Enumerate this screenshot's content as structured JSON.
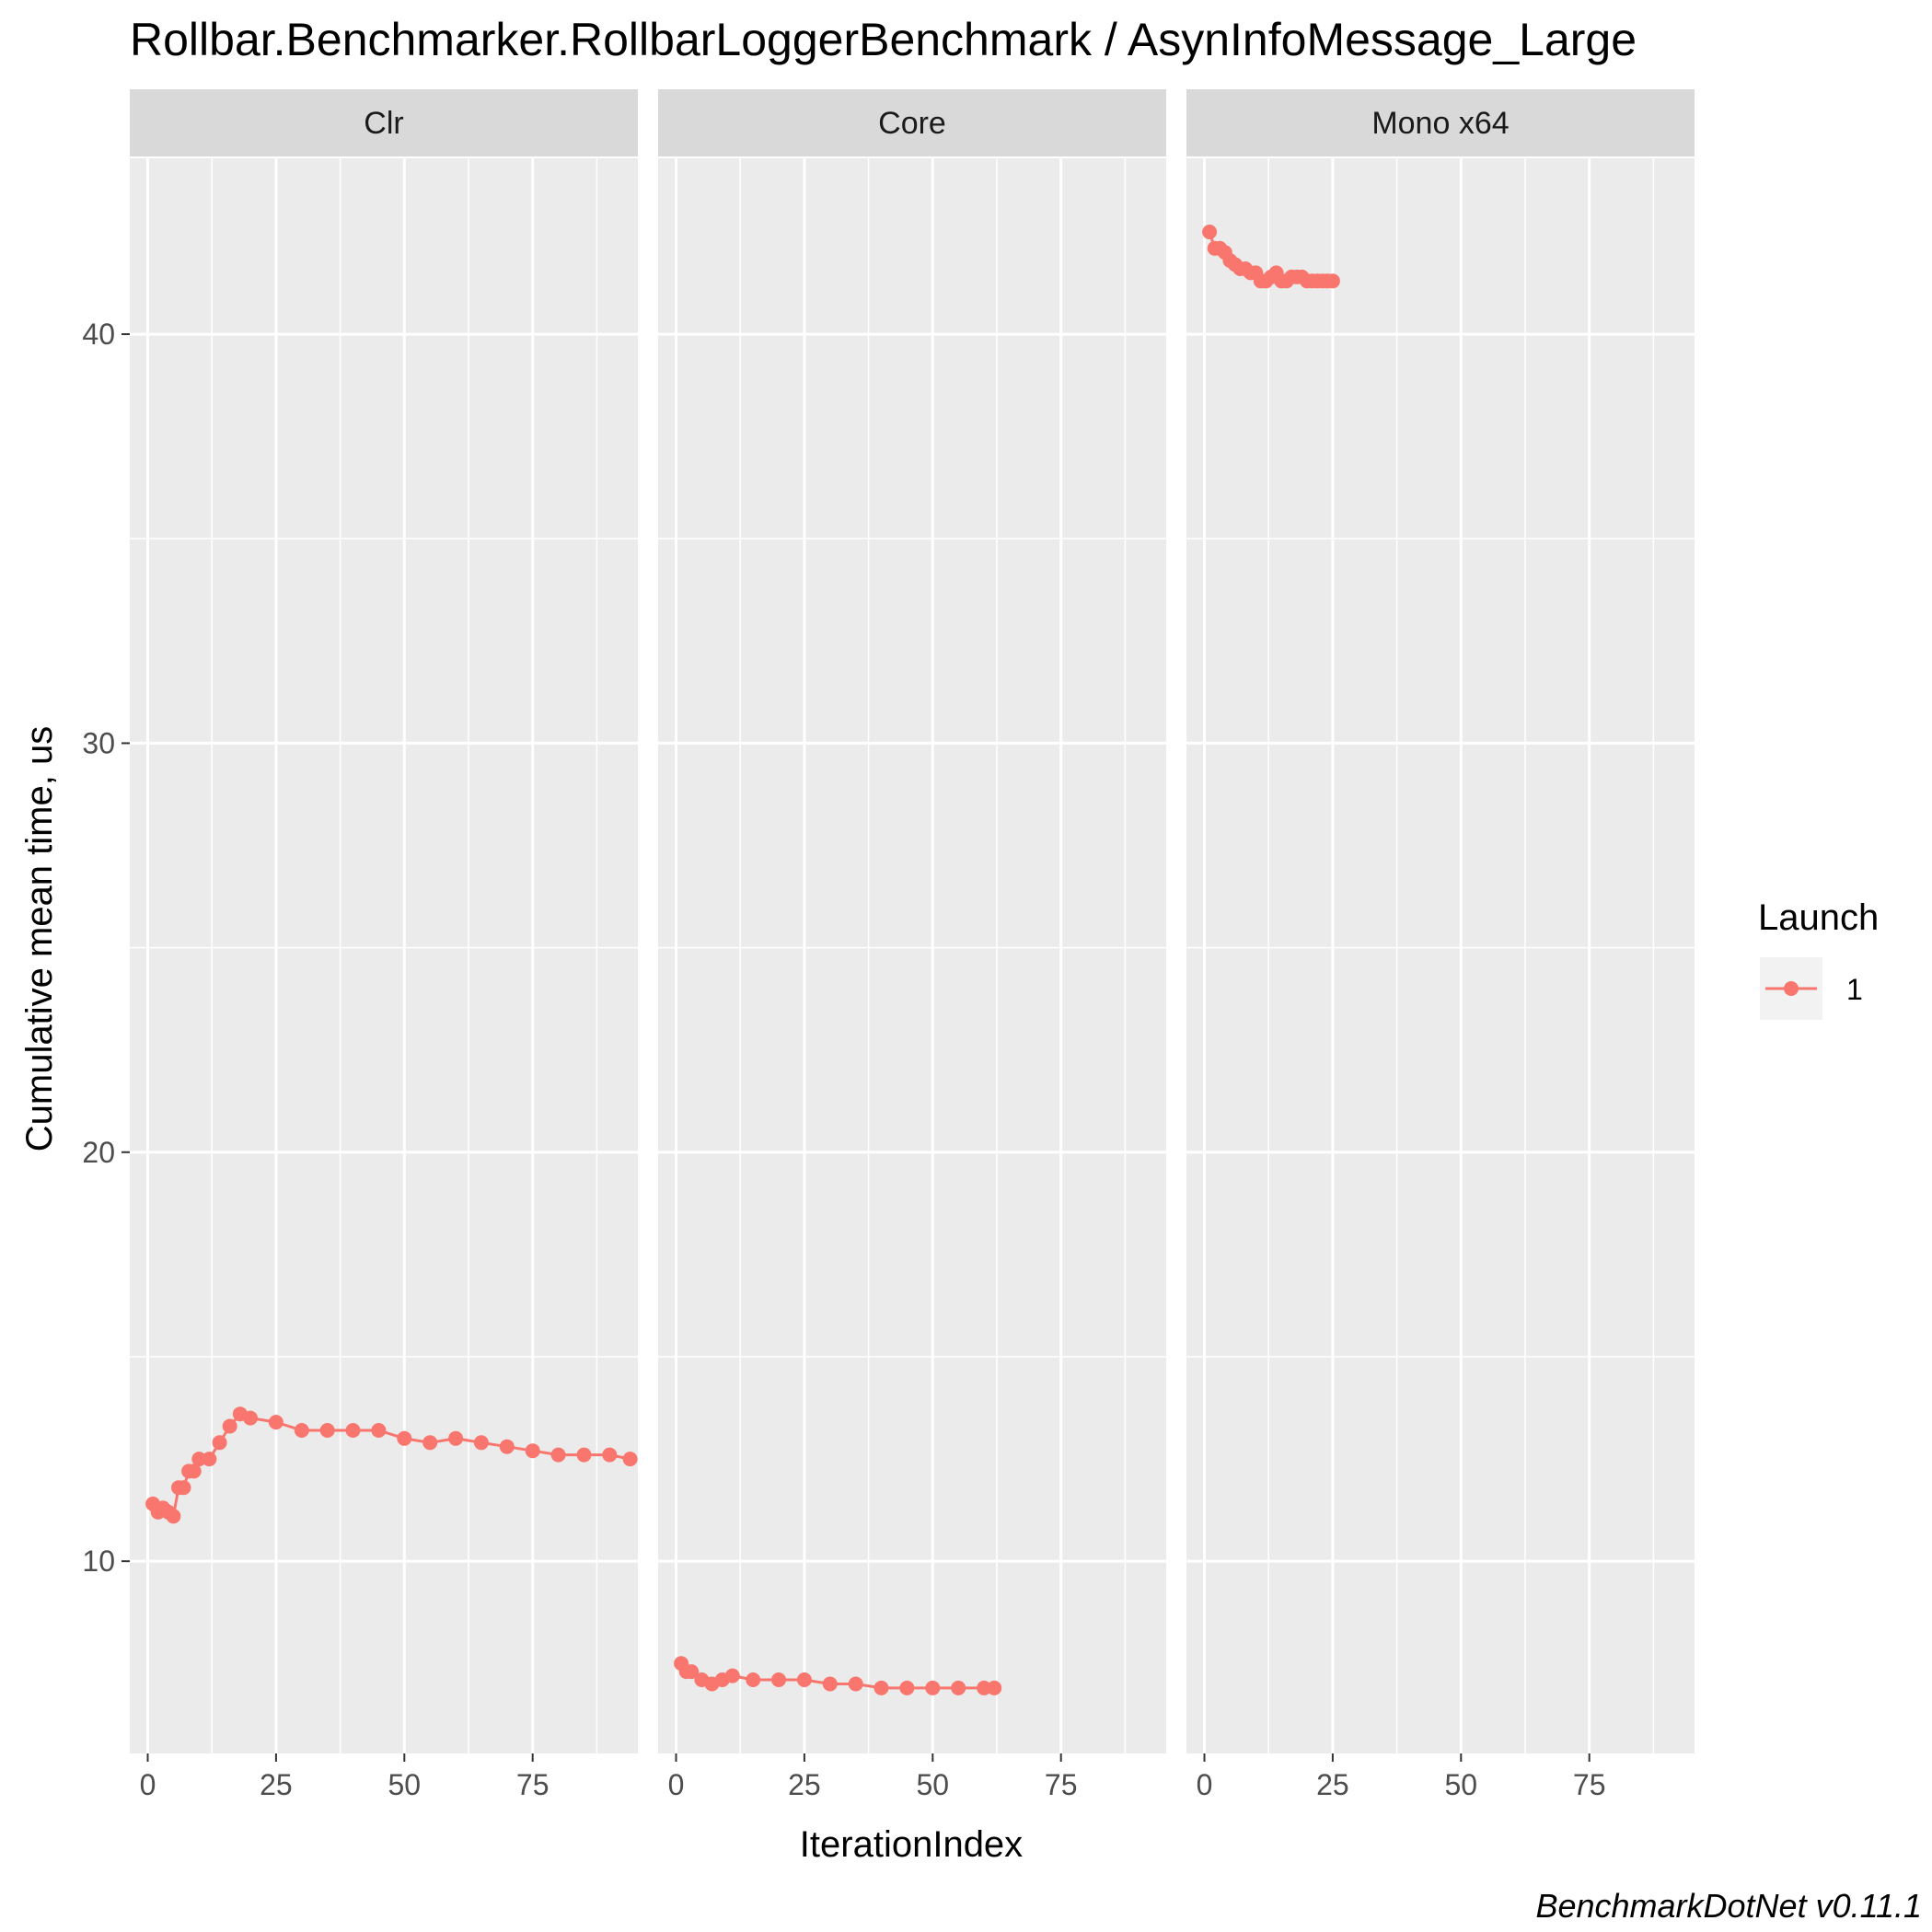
{
  "chart_data": {
    "type": "line",
    "title": "Rollbar.Benchmarker.RollbarLoggerBenchmark / AsynInfoMessage_Large",
    "xlabel": "IterationIndex",
    "ylabel": "Cumulative mean time, us",
    "caption": "BenchmarkDotNet v0.11.1",
    "xlim": [
      -3.5,
      95.5
    ],
    "ylim": [
      5.3,
      44.3
    ],
    "x_ticks": [
      "0",
      "25",
      "50",
      "75"
    ],
    "y_ticks": [
      "10",
      "20",
      "30",
      "40"
    ],
    "grid": true,
    "legend": {
      "title": "Launch",
      "position": "right",
      "entries": [
        "1"
      ]
    },
    "colors": {
      "series": "#f8766d",
      "panel_bg": "#ebebeb",
      "strip_bg": "#d9d9d9",
      "grid": "#ffffff"
    },
    "panels": [
      {
        "label": "Clr",
        "series": [
          {
            "name": "1",
            "x": [
              1,
              2,
              3,
              4,
              5,
              6,
              7,
              8,
              9,
              10,
              12,
              14,
              16,
              18,
              20,
              25,
              30,
              35,
              40,
              45,
              50,
              55,
              60,
              65,
              70,
              75,
              80,
              85,
              90,
              94
            ],
            "values": [
              11.4,
              11.2,
              11.3,
              11.2,
              11.1,
              11.8,
              11.8,
              12.2,
              12.2,
              12.5,
              12.5,
              12.9,
              13.3,
              13.6,
              13.5,
              13.4,
              13.2,
              13.2,
              13.2,
              13.2,
              13.0,
              12.9,
              13.0,
              12.9,
              12.8,
              12.7,
              12.6,
              12.6,
              12.6,
              12.5
            ]
          }
        ]
      },
      {
        "label": "Core",
        "series": [
          {
            "name": "1",
            "x": [
              1,
              2,
              3,
              5,
              7,
              9,
              11,
              15,
              20,
              25,
              30,
              35,
              40,
              45,
              50,
              55,
              60,
              62
            ],
            "values": [
              7.5,
              7.3,
              7.3,
              7.1,
              7.0,
              7.1,
              7.2,
              7.1,
              7.1,
              7.1,
              7.0,
              7.0,
              6.9,
              6.9,
              6.9,
              6.9,
              6.9,
              6.9
            ]
          }
        ]
      },
      {
        "label": "Mono x64",
        "series": [
          {
            "name": "1",
            "x": [
              1,
              2,
              3,
              4,
              5,
              6,
              7,
              8,
              9,
              10,
              11,
              12,
              13,
              14,
              15,
              16,
              17,
              18,
              19,
              20,
              21,
              22,
              23,
              24,
              25
            ],
            "values": [
              42.5,
              42.1,
              42.1,
              42.0,
              41.8,
              41.7,
              41.6,
              41.6,
              41.5,
              41.5,
              41.3,
              41.3,
              41.4,
              41.5,
              41.3,
              41.3,
              41.4,
              41.4,
              41.4,
              41.3,
              41.3,
              41.3,
              41.3,
              41.3,
              41.3
            ]
          }
        ]
      }
    ]
  }
}
